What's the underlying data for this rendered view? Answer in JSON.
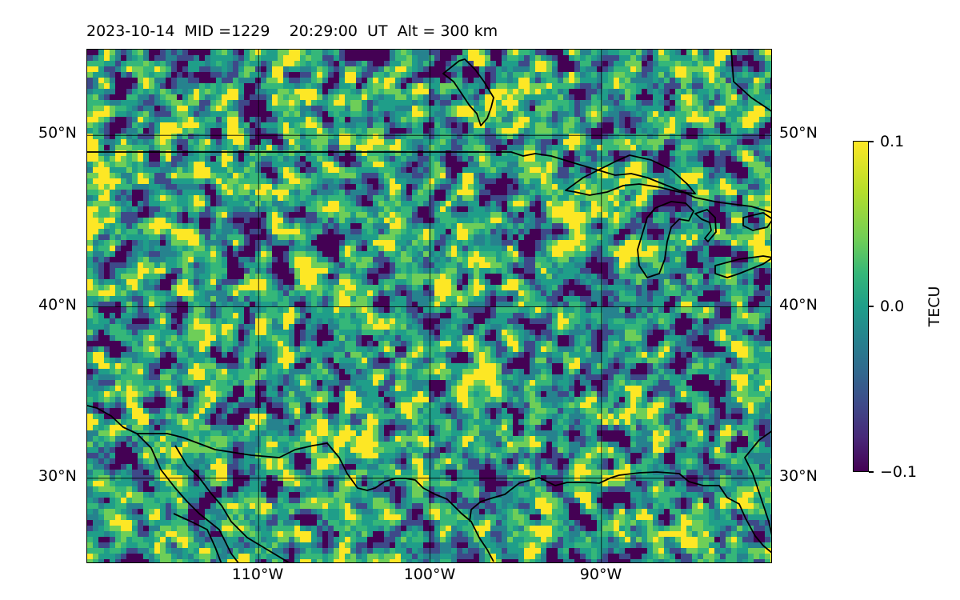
{
  "title": "2023-10-14  MID =1229    20:29:00  UT  Alt = 300 km",
  "map": {
    "lat_range": [
      25,
      55
    ],
    "lon_range": [
      -120,
      -80
    ],
    "lat_gridlines": [
      30,
      40,
      50
    ],
    "lon_gridlines": [
      -110,
      -100,
      -90
    ],
    "lat_labels": [
      "30°N",
      "40°N",
      "50°N"
    ],
    "lon_labels": [
      "110°W",
      "100°W",
      "90°W"
    ],
    "lat_labels_both_sides": true,
    "field": "detrended TEC perturbation",
    "coastlines": "black"
  },
  "colorbar": {
    "label": "TECU",
    "colormap": "viridis",
    "vmin": -0.1,
    "vmax": 0.1,
    "ticks": [
      "0.1",
      "0.0",
      "−0.1"
    ],
    "colors": [
      "#440154",
      "#3e4989",
      "#26828e",
      "#1f9e89",
      "#35b779",
      "#6ece58",
      "#fde725"
    ]
  }
}
